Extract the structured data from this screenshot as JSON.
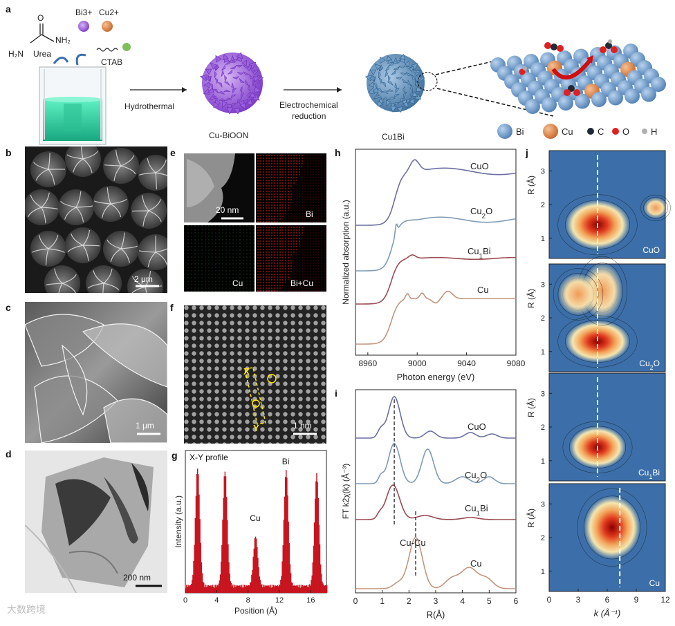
{
  "panel_a": {
    "label": "a",
    "ions": [
      "Bi3+",
      "Cu2+"
    ],
    "reagents": [
      "Urea",
      "CTAB"
    ],
    "step1": "Hydrothermal",
    "product1": "Cu-BiOON",
    "step2_line1": "Electrochemical",
    "step2_line2": "reduction",
    "product2": "Cu1Bi",
    "legend": [
      "Bi",
      "Cu",
      "C",
      "O",
      "H"
    ],
    "legend_colors": [
      "#6c9ccd",
      "#e08a4b",
      "#1f2a36",
      "#e02020",
      "#b0b0b0"
    ]
  },
  "panel_b": {
    "label": "b",
    "scale": "2 μm"
  },
  "panel_c": {
    "label": "c",
    "scale": "1 μm"
  },
  "panel_d": {
    "label": "d",
    "scale": "200 nm"
  },
  "panel_e": {
    "label": "e",
    "scale": "20 nm",
    "maps": [
      "Bi",
      "Cu",
      "Bi+Cu"
    ]
  },
  "panel_f": {
    "label": "f",
    "scale": "1 nm",
    "line_start": "X",
    "line_end": "Y"
  },
  "panel_h": {
    "label": "h"
  },
  "panel_i": {
    "label": "i",
    "annotation": "Cu-Cu"
  },
  "panel_j": {
    "label": "j",
    "ylabel": "R (Å)",
    "xlabel": "k (Å⁻¹)",
    "xticks": [
      "0",
      "3",
      "6",
      "9",
      "12"
    ],
    "yticks": [
      "1",
      "2",
      "3"
    ],
    "maps": [
      "CuO",
      "Cu2O",
      "Cu1Bi",
      "Cu"
    ]
  },
  "chart_data": [
    {
      "panel": "g",
      "type": "bar",
      "title": "X-Y profile",
      "xlabel": "Position (Å)",
      "ylabel": "Intensity (a.u.)",
      "xlim": [
        0,
        18
      ],
      "xticks": [
        0,
        4,
        8,
        12,
        16
      ],
      "annotations": [
        {
          "text": "Bi",
          "x": 12.8
        },
        {
          "text": "Cu",
          "x": 8.9
        }
      ],
      "peaks": [
        {
          "x": 1.5,
          "h": 0.95
        },
        {
          "x": 5.0,
          "h": 0.93
        },
        {
          "x": 8.9,
          "h": 0.4
        },
        {
          "x": 12.8,
          "h": 0.93
        },
        {
          "x": 16.7,
          "h": 0.9
        }
      ]
    },
    {
      "panel": "h",
      "type": "line",
      "xlabel": "Photon energy (eV)",
      "ylabel": "Normalized absorption (a.u.)",
      "xlim": [
        8950,
        9080
      ],
      "xticks": [
        8960,
        9000,
        9040,
        9080
      ],
      "series": [
        {
          "name": "CuO",
          "color": "#6a6fa0"
        },
        {
          "name": "Cu2O",
          "color": "#7f9ab5"
        },
        {
          "name": "Cu1Bi",
          "color": "#9a4a52"
        },
        {
          "name": "Cu",
          "color": "#c2957e"
        }
      ]
    },
    {
      "panel": "i",
      "type": "line",
      "xlabel": "R(Å)",
      "ylabel": "FT k2χ(k) (Å⁻³)",
      "xlim": [
        0,
        6
      ],
      "xticks": [
        0,
        1,
        2,
        3,
        4,
        5,
        6
      ],
      "series": [
        {
          "name": "CuO",
          "color": "#6a6fa0"
        },
        {
          "name": "Cu2O",
          "color": "#7f9ab5"
        },
        {
          "name": "Cu1Bi",
          "color": "#9a4a52"
        },
        {
          "name": "Cu",
          "color": "#c2957e"
        }
      ],
      "reference_lines": [
        1.45,
        2.25
      ]
    }
  ],
  "watermark": "大数跨境"
}
